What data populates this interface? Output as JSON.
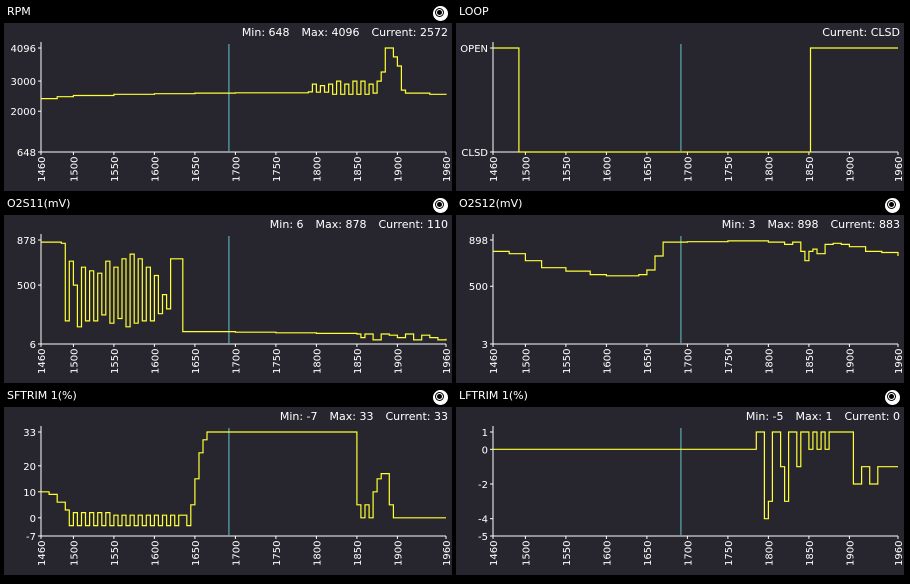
{
  "colors": {
    "series": "#ffff33",
    "cursor": "#66c6cc",
    "axis": "#ffffff",
    "plot_bg": "#27262f"
  },
  "icons": {
    "panel_button": "settings-dot-icon"
  },
  "chart_data": [
    {
      "type": "line",
      "title": "RPM",
      "stats": {
        "min": "Min: 648",
        "max": "Max: 4096",
        "current": "Current: 2572"
      },
      "xlim": [
        1460,
        1960
      ],
      "x_ticks": [
        1460,
        1500,
        1550,
        1600,
        1650,
        1700,
        1750,
        1800,
        1850,
        1900,
        1960
      ],
      "ylim": [
        648,
        4096
      ],
      "y_ticks": [
        4096,
        3000,
        2000,
        648
      ],
      "y_tick_labels": [
        "4096",
        "3000",
        "2000",
        "648"
      ],
      "cursor_x": 1692,
      "series": [
        {
          "x": [
            1460,
            1480,
            1500,
            1550,
            1600,
            1650,
            1700,
            1750,
            1790,
            1795,
            1800,
            1805,
            1810,
            1815,
            1820,
            1825,
            1830,
            1835,
            1840,
            1845,
            1850,
            1855,
            1860,
            1865,
            1870,
            1875,
            1880,
            1885,
            1890,
            1895,
            1900,
            1905,
            1910,
            1920,
            1940,
            1960
          ],
          "y": [
            2420,
            2480,
            2520,
            2560,
            2580,
            2600,
            2610,
            2610,
            2640,
            2900,
            2630,
            2850,
            2630,
            2900,
            2560,
            3000,
            2560,
            2900,
            2560,
            3000,
            2560,
            3000,
            2560,
            2900,
            2600,
            3000,
            3300,
            4096,
            4096,
            3800,
            3500,
            2700,
            2600,
            2600,
            2560,
            2540
          ]
        }
      ]
    },
    {
      "type": "line",
      "title": "LOOP",
      "stats": {
        "current": "Current: CLSD"
      },
      "xlim": [
        1460,
        1960
      ],
      "x_ticks": [
        1460,
        1500,
        1550,
        1600,
        1650,
        1700,
        1750,
        1800,
        1850,
        1900,
        1960
      ],
      "ylim": [
        0,
        1
      ],
      "y_ticks": [
        1,
        0
      ],
      "y_tick_labels": [
        "OPEN",
        "CLSD"
      ],
      "cursor_x": 1692,
      "series": [
        {
          "x": [
            1460,
            1492,
            1492,
            1852,
            1852,
            1960
          ],
          "y": [
            1,
            1,
            0,
            0,
            1,
            1
          ]
        }
      ]
    },
    {
      "type": "line",
      "title": "O2S11(mV)",
      "stats": {
        "min": "Min: 6",
        "max": "Max: 878",
        "current": "Current: 110"
      },
      "xlim": [
        1460,
        1960
      ],
      "x_ticks": [
        1460,
        1500,
        1550,
        1600,
        1650,
        1700,
        1750,
        1800,
        1850,
        1900,
        1960
      ],
      "ylim": [
        6,
        878
      ],
      "y_ticks": [
        878,
        500,
        6
      ],
      "y_tick_labels": [
        "878",
        "500",
        "6"
      ],
      "cursor_x": 1692,
      "series": [
        {
          "x": [
            1460,
            1485,
            1490,
            1495,
            1500,
            1505,
            1510,
            1515,
            1520,
            1525,
            1530,
            1535,
            1540,
            1545,
            1550,
            1555,
            1560,
            1565,
            1570,
            1575,
            1580,
            1585,
            1590,
            1595,
            1600,
            1605,
            1610,
            1615,
            1620,
            1625,
            1630,
            1635,
            1700,
            1750,
            1800,
            1850,
            1855,
            1860,
            1870,
            1880,
            1890,
            1900,
            1910,
            1920,
            1930,
            1940,
            1950,
            1960
          ],
          "y": [
            860,
            850,
            200,
            700,
            500,
            150,
            650,
            200,
            620,
            200,
            600,
            250,
            700,
            180,
            650,
            220,
            720,
            150,
            760,
            180,
            720,
            200,
            650,
            200,
            580,
            260,
            420,
            300,
            720,
            720,
            720,
            110,
            105,
            100,
            95,
            90,
            60,
            90,
            40,
            90,
            80,
            60,
            90,
            40,
            80,
            60,
            40,
            50
          ]
        }
      ]
    },
    {
      "type": "line",
      "title": "O2S12(mV)",
      "stats": {
        "min": "Min: 3",
        "max": "Max: 898",
        "current": "Current: 883"
      },
      "xlim": [
        1460,
        1960
      ],
      "x_ticks": [
        1460,
        1500,
        1550,
        1600,
        1650,
        1700,
        1750,
        1800,
        1850,
        1900,
        1960
      ],
      "ylim": [
        3,
        898
      ],
      "y_ticks": [
        898,
        500,
        3
      ],
      "y_tick_labels": [
        "898",
        "500",
        "3"
      ],
      "cursor_x": 1692,
      "series": [
        {
          "x": [
            1460,
            1480,
            1500,
            1520,
            1550,
            1580,
            1600,
            1620,
            1640,
            1650,
            1660,
            1670,
            1700,
            1750,
            1800,
            1820,
            1830,
            1840,
            1845,
            1850,
            1855,
            1860,
            1870,
            1880,
            1890,
            1900,
            1920,
            1940,
            1960
          ],
          "y": [
            800,
            780,
            720,
            660,
            630,
            600,
            590,
            590,
            600,
            640,
            760,
            880,
            883,
            890,
            880,
            860,
            880,
            800,
            720,
            800,
            820,
            780,
            860,
            870,
            860,
            840,
            800,
            790,
            760
          ]
        }
      ]
    },
    {
      "type": "line",
      "title": "SFTRIM 1(%)",
      "stats": {
        "min": "Min: -7",
        "max": "Max: 33",
        "current": "Current: 33"
      },
      "xlim": [
        1460,
        1960
      ],
      "x_ticks": [
        1460,
        1500,
        1550,
        1600,
        1650,
        1700,
        1750,
        1800,
        1850,
        1900,
        1960
      ],
      "ylim": [
        -7,
        33
      ],
      "y_ticks": [
        33,
        20,
        10,
        0,
        -7
      ],
      "y_tick_labels": [
        "33",
        "20",
        "10",
        "0",
        "-7"
      ],
      "cursor_x": 1692,
      "series": [
        {
          "x": [
            1460,
            1470,
            1480,
            1490,
            1495,
            1500,
            1505,
            1510,
            1515,
            1520,
            1525,
            1530,
            1535,
            1540,
            1545,
            1550,
            1555,
            1560,
            1565,
            1570,
            1575,
            1580,
            1585,
            1590,
            1595,
            1600,
            1605,
            1610,
            1615,
            1620,
            1625,
            1630,
            1640,
            1645,
            1650,
            1655,
            1660,
            1665,
            1670,
            1700,
            1750,
            1800,
            1845,
            1850,
            1855,
            1860,
            1865,
            1870,
            1875,
            1880,
            1885,
            1890,
            1895,
            1900,
            1920,
            1940,
            1960
          ],
          "y": [
            10,
            9,
            6,
            3,
            -3,
            2,
            -3,
            2,
            -3,
            2,
            -3,
            2,
            -3,
            2,
            -3,
            1,
            -3,
            1,
            -3,
            1,
            -3,
            1,
            -3,
            1,
            -3,
            1,
            -3,
            1,
            -3,
            1,
            -3,
            1,
            -3,
            5,
            15,
            25,
            30,
            33,
            33,
            33,
            33,
            33,
            33,
            5,
            0,
            5,
            0,
            10,
            15,
            17,
            17,
            5,
            0,
            0,
            0,
            0,
            0
          ]
        }
      ]
    },
    {
      "type": "line",
      "title": "LFTRIM 1(%)",
      "stats": {
        "min": "Min: -5",
        "max": "Max: 1",
        "current": "Current: 0"
      },
      "xlim": [
        1460,
        1960
      ],
      "x_ticks": [
        1460,
        1500,
        1550,
        1600,
        1650,
        1700,
        1750,
        1800,
        1850,
        1900,
        1960
      ],
      "ylim": [
        -5,
        1
      ],
      "y_ticks": [
        1,
        0,
        -2,
        -4,
        -5
      ],
      "y_tick_labels": [
        "1",
        "0",
        "-2",
        "-4",
        "-5"
      ],
      "cursor_x": 1692,
      "series": [
        {
          "x": [
            1460,
            1700,
            1780,
            1785,
            1790,
            1795,
            1800,
            1805,
            1810,
            1815,
            1820,
            1825,
            1830,
            1835,
            1840,
            1845,
            1850,
            1855,
            1860,
            1865,
            1870,
            1875,
            1880,
            1885,
            1890,
            1895,
            1900,
            1905,
            1910,
            1915,
            1920,
            1925,
            1930,
            1935,
            1940,
            1945,
            1950,
            1955,
            1960
          ],
          "y": [
            0,
            0,
            0,
            1,
            1,
            -4,
            -3,
            1,
            1,
            -1,
            -3,
            1,
            1,
            -1,
            1,
            1,
            0,
            1,
            0,
            1,
            0,
            1,
            1,
            1,
            1,
            1,
            1,
            -2,
            -2,
            -1,
            -1,
            -2,
            -2,
            -1,
            -1,
            -1,
            -1,
            -1,
            -1
          ]
        }
      ]
    }
  ]
}
